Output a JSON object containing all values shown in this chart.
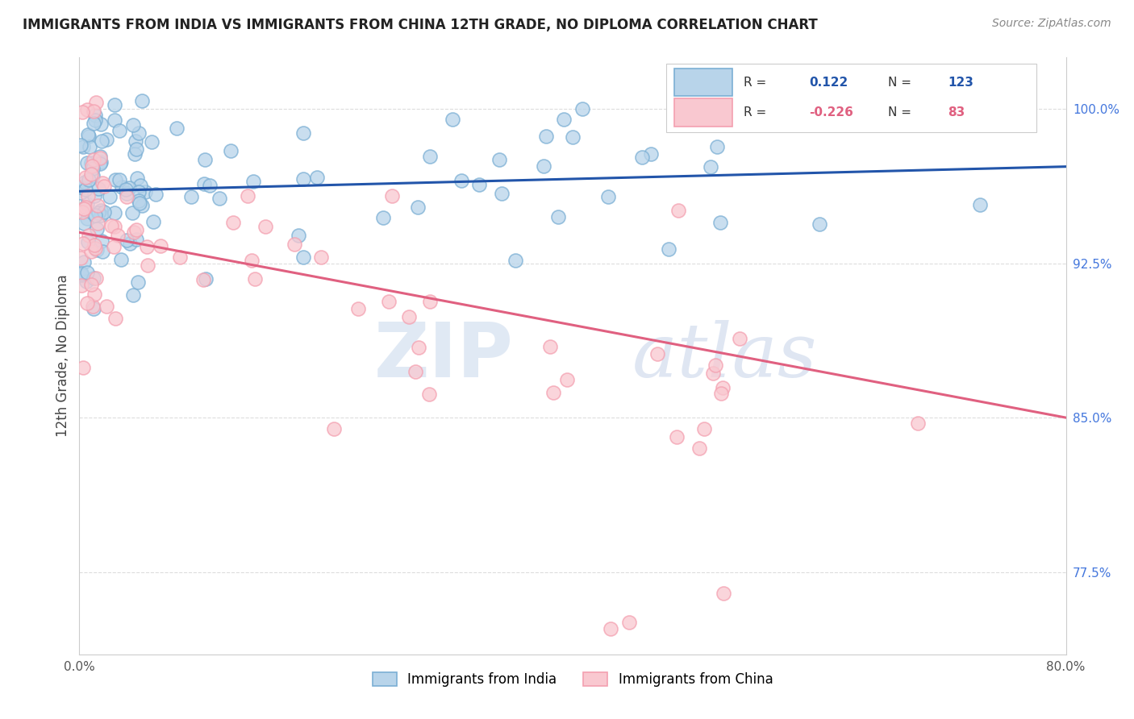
{
  "title": "IMMIGRANTS FROM INDIA VS IMMIGRANTS FROM CHINA 12TH GRADE, NO DIPLOMA CORRELATION CHART",
  "source": "Source: ZipAtlas.com",
  "xlabel_india": "Immigrants from India",
  "xlabel_china": "Immigrants from China",
  "ylabel": "12th Grade, No Diploma",
  "xmin": 0.0,
  "xmax": 0.8,
  "ymin": 0.735,
  "ymax": 1.025,
  "yticks": [
    0.775,
    0.85,
    0.925,
    1.0
  ],
  "ytick_labels": [
    "77.5%",
    "85.0%",
    "92.5%",
    "100.0%"
  ],
  "xticks": [
    0.0,
    0.1,
    0.2,
    0.3,
    0.4,
    0.5,
    0.6,
    0.7,
    0.8
  ],
  "xtick_labels": [
    "0.0%",
    "",
    "",
    "",
    "",
    "",
    "",
    "",
    "80.0%"
  ],
  "india_color": "#7BAFD4",
  "india_fill": "#B8D4EA",
  "china_color": "#F4A0B0",
  "china_fill": "#F9C8D0",
  "india_line_color": "#2255AA",
  "china_line_color": "#E06080",
  "india_R": 0.122,
  "india_N": 123,
  "china_R": -0.226,
  "china_N": 83,
  "india_trend_y0": 0.96,
  "india_trend_y1": 0.972,
  "china_trend_y0": 0.94,
  "china_trend_y1": 0.85,
  "watermark_zip": "ZIP",
  "watermark_atlas": "atlas",
  "background_color": "#ffffff",
  "grid_color": "#dddddd",
  "tick_color": "#555555",
  "right_axis_color": "#4477DD"
}
